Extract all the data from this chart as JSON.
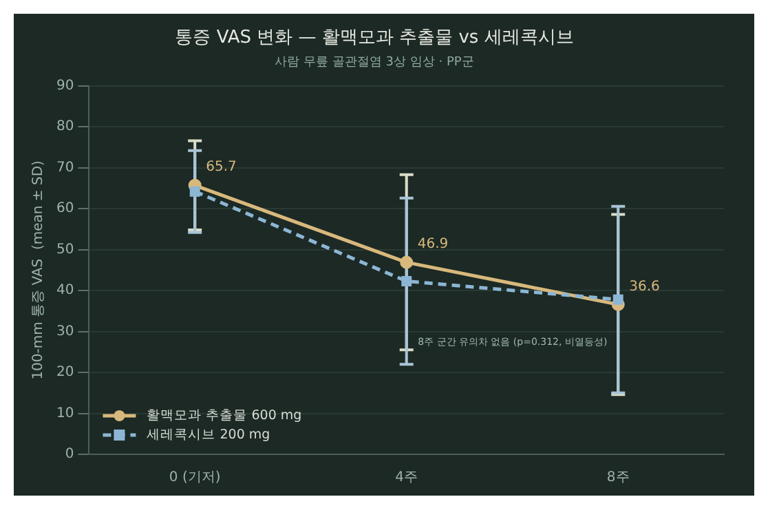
{
  "chart_data": {
    "type": "line",
    "title": "통증 VAS 변화 — 활맥모과 추출물 vs 세레콕시브",
    "subtitle": "사람 무릎 골관절염 3상 임상 · PP군",
    "ylabel": "100-mm 통증 VAS  (mean ± SD)",
    "categories": [
      "0 (기저)",
      "4주",
      "8주"
    ],
    "series": [
      {
        "name": "활맥모과 추출물 600 mg",
        "color": "#d8b87c",
        "values": [
          65.7,
          46.9,
          36.6
        ],
        "errors": [
          10.9,
          21.4,
          22.0
        ],
        "value_labels": [
          "65.7",
          "46.9",
          "36.6"
        ],
        "marker": "circle",
        "line_style": "solid"
      },
      {
        "name": "세레콕시브 200 mg",
        "color": "#8cb6d4",
        "values": [
          64.2,
          42.3,
          37.8
        ],
        "errors": [
          10.0,
          20.3,
          22.8
        ],
        "marker": "square",
        "line_style": "dashed"
      }
    ],
    "ylim": [
      0,
      90
    ],
    "yticks": [
      0,
      10,
      20,
      30,
      40,
      50,
      60,
      70,
      80,
      90
    ],
    "grid": "y",
    "legend": "bottom left",
    "annotations": [
      "8주 군간 유의차 없음 (p=0.312, 비열등성)"
    ]
  }
}
